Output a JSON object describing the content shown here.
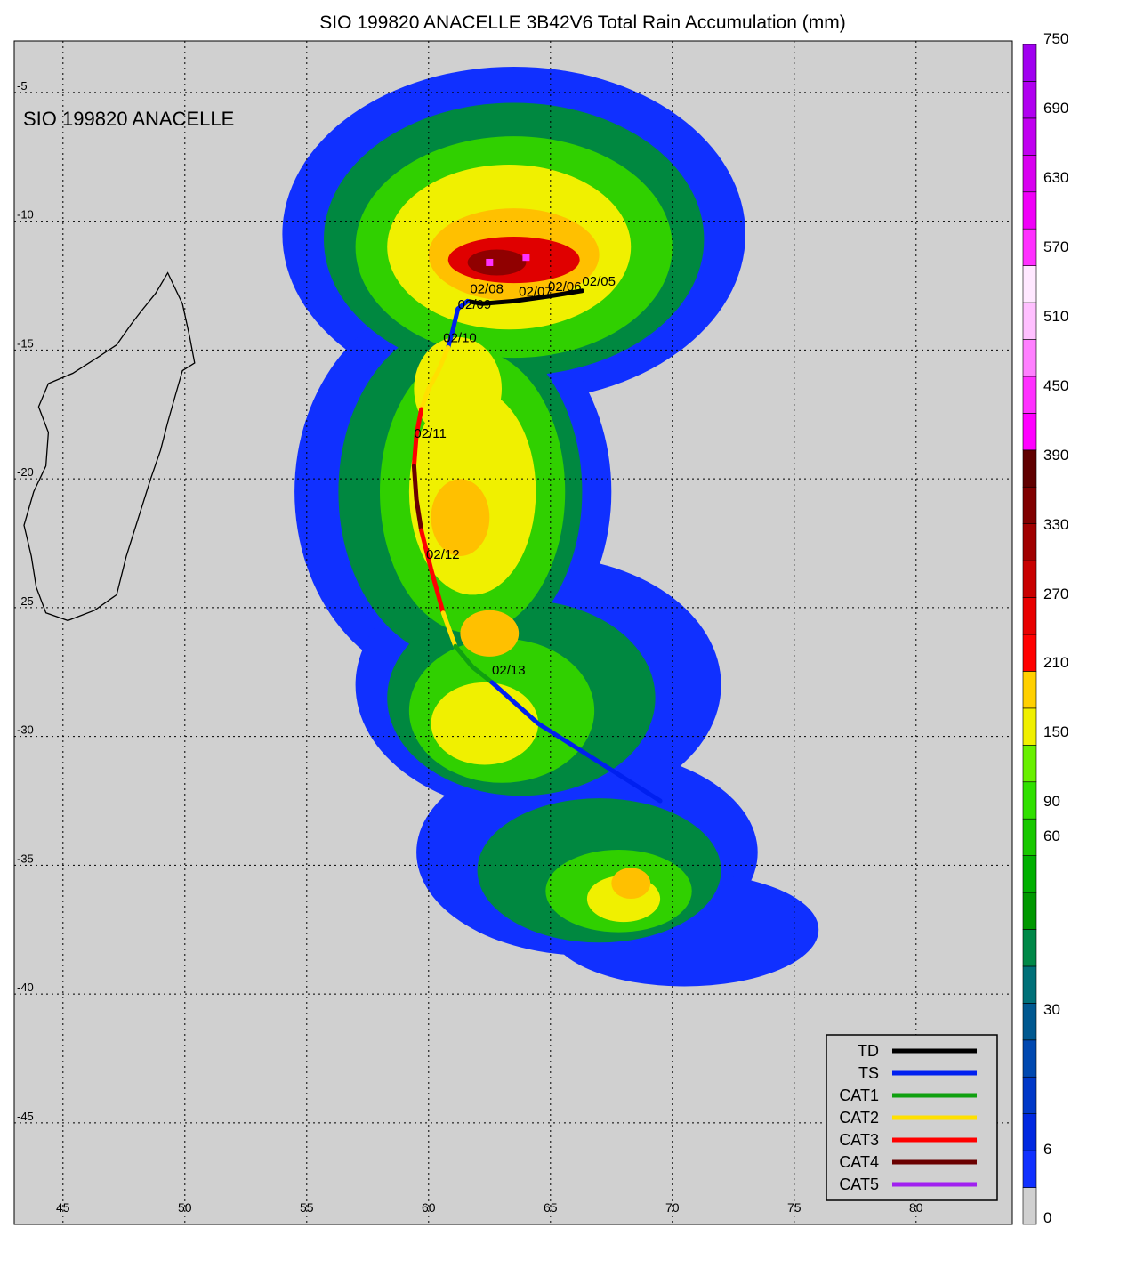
{
  "title": "SIO 199820 ANACELLE 3B42V6 Total Rain Accumulation (mm)",
  "storm_label": "SIO 199820 ANACELLE",
  "map": {
    "lon_range": [
      43,
      84
    ],
    "lat_range": [
      -48,
      -3
    ],
    "lon_ticks": [
      {
        "value": 45,
        "label": "45"
      },
      {
        "value": 50,
        "label": "50"
      },
      {
        "value": 55,
        "label": "55"
      },
      {
        "value": 60,
        "label": "60"
      },
      {
        "value": 65,
        "label": "65"
      },
      {
        "value": 70,
        "label": "70"
      },
      {
        "value": 75,
        "label": "75"
      },
      {
        "value": 80,
        "label": "80"
      }
    ],
    "lat_ticks": [
      {
        "value": -5,
        "label": "-5"
      },
      {
        "value": -10,
        "label": "-10"
      },
      {
        "value": -15,
        "label": "-15"
      },
      {
        "value": -20,
        "label": "-20"
      },
      {
        "value": -25,
        "label": "-25"
      },
      {
        "value": -30,
        "label": "-30"
      },
      {
        "value": -35,
        "label": "-35"
      },
      {
        "value": -40,
        "label": "-40"
      },
      {
        "value": -45,
        "label": "-45"
      }
    ],
    "gridlines": true,
    "background_color": "#d0d0d0"
  },
  "colorbar": {
    "labels": [
      "0",
      "6",
      "30",
      "60",
      "90",
      "150",
      "210",
      "270",
      "330",
      "390",
      "450",
      "510",
      "570",
      "630",
      "690",
      "750"
    ],
    "colors": [
      "#d0d0d0",
      "#1030ff",
      "#0028e0",
      "#0038c8",
      "#0048b0",
      "#005890",
      "#007078",
      "#008848",
      "#009800",
      "#00b000",
      "#18c800",
      "#30e000",
      "#68f000",
      "#f0f000",
      "#ffd000",
      "#ff0000",
      "#e80000",
      "#c80000",
      "#a00000",
      "#800000",
      "#600000",
      "#ff00ff",
      "#ff30ff",
      "#ff80ff",
      "#ffc0ff",
      "#ffe8ff",
      "#ff30ff",
      "#f000f8",
      "#d800f0",
      "#c000f0",
      "#b000f0",
      "#a000f0"
    ]
  },
  "track": {
    "segments": [
      {
        "category": "TD",
        "points": [
          [
            66.3,
            -12.7
          ],
          [
            65.0,
            -12.9
          ],
          [
            63.5,
            -13.1
          ],
          [
            62.2,
            -13.2
          ],
          [
            61.6,
            -13.1
          ]
        ]
      },
      {
        "category": "TS",
        "points": [
          [
            61.6,
            -13.1
          ],
          [
            61.2,
            -13.4
          ],
          [
            61.0,
            -14.2
          ],
          [
            60.8,
            -14.9
          ]
        ]
      },
      {
        "category": "CAT2",
        "points": [
          [
            60.8,
            -14.9
          ],
          [
            60.4,
            -15.8
          ],
          [
            60.0,
            -16.5
          ],
          [
            59.7,
            -17.3
          ]
        ]
      },
      {
        "category": "CAT3",
        "points": [
          [
            59.7,
            -17.3
          ],
          [
            59.5,
            -18.3
          ],
          [
            59.4,
            -19.5
          ]
        ]
      },
      {
        "category": "CAT4",
        "points": [
          [
            59.4,
            -19.5
          ],
          [
            59.5,
            -20.8
          ],
          [
            59.7,
            -22.0
          ]
        ]
      },
      {
        "category": "CAT3",
        "points": [
          [
            59.7,
            -22.0
          ],
          [
            60.1,
            -23.5
          ],
          [
            60.6,
            -25.2
          ]
        ]
      },
      {
        "category": "CAT2",
        "points": [
          [
            60.6,
            -25.2
          ],
          [
            61.1,
            -26.5
          ]
        ]
      },
      {
        "category": "CAT1",
        "points": [
          [
            61.1,
            -26.5
          ],
          [
            61.8,
            -27.3
          ],
          [
            62.6,
            -27.9
          ]
        ]
      },
      {
        "category": "TS",
        "points": [
          [
            62.6,
            -27.9
          ],
          [
            64.5,
            -29.5
          ],
          [
            67.0,
            -31.0
          ],
          [
            69.5,
            -32.5
          ]
        ]
      }
    ],
    "dates": [
      {
        "label": "02/05",
        "lon": 66.3,
        "lat": -12.5
      },
      {
        "label": "02/06",
        "lon": 64.9,
        "lat": -12.7
      },
      {
        "label": "02/07",
        "lon": 63.7,
        "lat": -12.9
      },
      {
        "label": "02/08",
        "lon": 61.7,
        "lat": -12.8
      },
      {
        "label": "02/09",
        "lon": 61.2,
        "lat": -13.4
      },
      {
        "label": "02/10",
        "lon": 60.6,
        "lat": -14.7
      },
      {
        "label": "02/11",
        "lon": 59.4,
        "lat": -18.4
      },
      {
        "label": "02/12",
        "lon": 59.9,
        "lat": -23.1
      },
      {
        "label": "02/13",
        "lon": 62.6,
        "lat": -27.6
      }
    ]
  },
  "legend": {
    "items": [
      {
        "label": "TD",
        "color": "#000000"
      },
      {
        "label": "TS",
        "color": "#0020f0"
      },
      {
        "label": "CAT1",
        "color": "#10a010"
      },
      {
        "label": "CAT2",
        "color": "#ffe000"
      },
      {
        "label": "CAT3",
        "color": "#ff0000"
      },
      {
        "label": "CAT4",
        "color": "#6a0000"
      },
      {
        "label": "CAT5",
        "color": "#a020f0"
      }
    ]
  },
  "rain_field": {
    "blobs": [
      {
        "lon": 63.5,
        "lat": -10.5,
        "level": 1,
        "rx": 9.5,
        "ry": 6.5
      },
      {
        "lon": 61.0,
        "lat": -20.5,
        "level": 1,
        "rx": 6.5,
        "ry": 7.5
      },
      {
        "lon": 64.5,
        "lat": -28.0,
        "level": 1,
        "rx": 7.5,
        "ry": 5.0
      },
      {
        "lon": 66.5,
        "lat": -34.5,
        "level": 1,
        "rx": 7.0,
        "ry": 4.0
      },
      {
        "lon": 70.5,
        "lat": -37.5,
        "level": 1,
        "rx": 5.5,
        "ry": 2.2
      },
      {
        "lon": 63.5,
        "lat": -10.7,
        "level": 2,
        "rx": 7.8,
        "ry": 5.3
      },
      {
        "lon": 61.3,
        "lat": -20.5,
        "level": 2,
        "rx": 5.0,
        "ry": 6.5
      },
      {
        "lon": 63.8,
        "lat": -28.5,
        "level": 2,
        "rx": 5.5,
        "ry": 3.8
      },
      {
        "lon": 67.0,
        "lat": -35.2,
        "level": 2,
        "rx": 5.0,
        "ry": 2.8
      },
      {
        "lon": 63.5,
        "lat": -11.0,
        "level": 3,
        "rx": 6.5,
        "ry": 4.3
      },
      {
        "lon": 61.8,
        "lat": -20.5,
        "level": 3,
        "rx": 3.8,
        "ry": 5.5
      },
      {
        "lon": 63.0,
        "lat": -29.0,
        "level": 3,
        "rx": 3.8,
        "ry": 2.8
      },
      {
        "lon": 67.8,
        "lat": -36.0,
        "level": 3,
        "rx": 3.0,
        "ry": 1.6
      },
      {
        "lon": 63.3,
        "lat": -11.0,
        "level": 4,
        "rx": 5.0,
        "ry": 3.2
      },
      {
        "lon": 61.8,
        "lat": -20.5,
        "level": 4,
        "rx": 2.6,
        "ry": 4.0
      },
      {
        "lon": 61.2,
        "lat": -16.5,
        "level": 4,
        "rx": 1.8,
        "ry": 2.0
      },
      {
        "lon": 62.3,
        "lat": -29.5,
        "level": 4,
        "rx": 2.2,
        "ry": 1.6
      },
      {
        "lon": 68.0,
        "lat": -36.3,
        "level": 4,
        "rx": 1.5,
        "ry": 0.9
      },
      {
        "lon": 63.5,
        "lat": -11.3,
        "level": 5,
        "rx": 3.5,
        "ry": 1.8
      },
      {
        "lon": 61.3,
        "lat": -21.5,
        "level": 5,
        "rx": 1.2,
        "ry": 1.5
      },
      {
        "lon": 62.5,
        "lat": -26.0,
        "level": 5,
        "rx": 1.2,
        "ry": 0.9
      },
      {
        "lon": 68.3,
        "lat": -35.7,
        "level": 5,
        "rx": 0.8,
        "ry": 0.6
      },
      {
        "lon": 63.5,
        "lat": -11.5,
        "level": 6,
        "rx": 2.7,
        "ry": 0.9
      },
      {
        "lon": 62.8,
        "lat": -11.6,
        "level": 7,
        "rx": 1.2,
        "ry": 0.5
      }
    ],
    "level_colors": [
      "#1030ff",
      "#008840",
      "#30d000",
      "#f0f000",
      "#ffc000",
      "#e00000",
      "#900000"
    ]
  }
}
